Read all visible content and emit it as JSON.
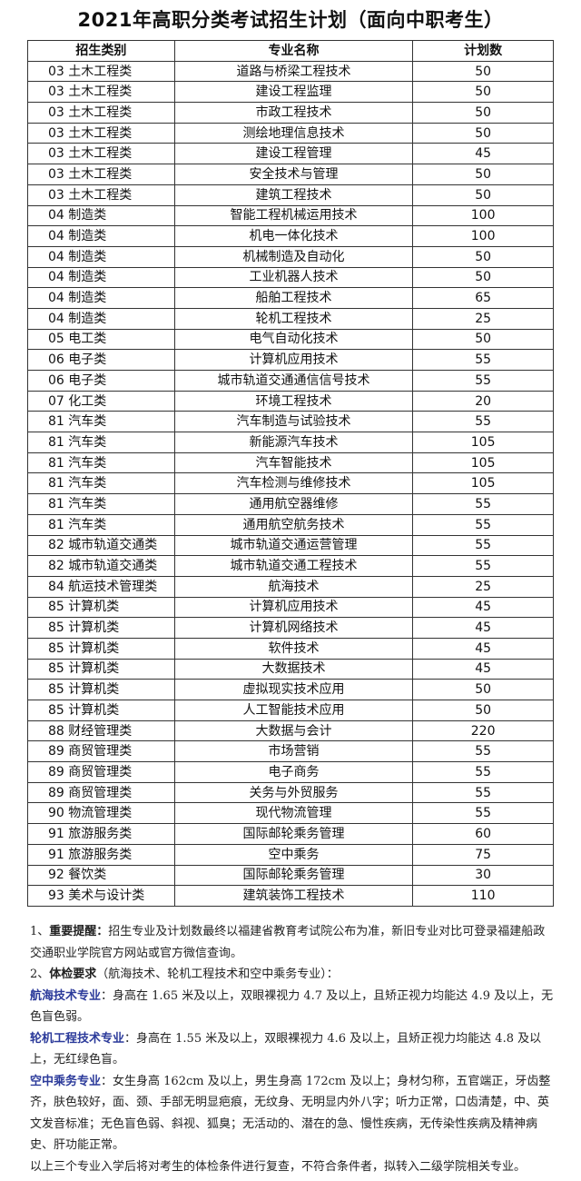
{
  "title": "2021年高职分类考试招生计划（面向中职考生）",
  "table": {
    "headers": [
      "招生类别",
      "专业名称",
      "计划数"
    ],
    "rows": [
      [
        "03 土木工程类",
        "道路与桥梁工程技术",
        "50"
      ],
      [
        "03 土木工程类",
        "建设工程监理",
        "50"
      ],
      [
        "03 土木工程类",
        "市政工程技术",
        "50"
      ],
      [
        "03 土木工程类",
        "测绘地理信息技术",
        "50"
      ],
      [
        "03 土木工程类",
        "建设工程管理",
        "45"
      ],
      [
        "03 土木工程类",
        "安全技术与管理",
        "50"
      ],
      [
        "03 土木工程类",
        "建筑工程技术",
        "50"
      ],
      [
        "04 制造类",
        "智能工程机械运用技术",
        "100"
      ],
      [
        "04 制造类",
        "机电一体化技术",
        "100"
      ],
      [
        "04 制造类",
        "机械制造及自动化",
        "50"
      ],
      [
        "04 制造类",
        "工业机器人技术",
        "50"
      ],
      [
        "04 制造类",
        "船舶工程技术",
        "65"
      ],
      [
        "04 制造类",
        "轮机工程技术",
        "25"
      ],
      [
        "05 电工类",
        "电气自动化技术",
        "50"
      ],
      [
        "06 电子类",
        "计算机应用技术",
        "55"
      ],
      [
        "06 电子类",
        "城市轨道交通通信信号技术",
        "55"
      ],
      [
        "07 化工类",
        "环境工程技术",
        "20"
      ],
      [
        "81 汽车类",
        "汽车制造与试验技术",
        "55"
      ],
      [
        "81 汽车类",
        "新能源汽车技术",
        "105"
      ],
      [
        "81 汽车类",
        "汽车智能技术",
        "105"
      ],
      [
        "81 汽车类",
        "汽车检测与维修技术",
        "105"
      ],
      [
        "81 汽车类",
        "通用航空器维修",
        "55"
      ],
      [
        "81 汽车类",
        "通用航空航务技术",
        "55"
      ],
      [
        "82 城市轨道交通类",
        "城市轨道交通运营管理",
        "55"
      ],
      [
        "82 城市轨道交通类",
        "城市轨道交通工程技术",
        "55"
      ],
      [
        "84 航运技术管理类",
        "航海技术",
        "25"
      ],
      [
        "85 计算机类",
        "计算机应用技术",
        "45"
      ],
      [
        "85 计算机类",
        "计算机网络技术",
        "45"
      ],
      [
        "85 计算机类",
        "软件技术",
        "45"
      ],
      [
        "85 计算机类",
        "大数据技术",
        "45"
      ],
      [
        "85 计算机类",
        "虚拟现实技术应用",
        "50"
      ],
      [
        "85 计算机类",
        "人工智能技术应用",
        "50"
      ],
      [
        "88 财经管理类",
        "大数据与会计",
        "220"
      ],
      [
        "89 商贸管理类",
        "市场营销",
        "55"
      ],
      [
        "89 商贸管理类",
        "电子商务",
        "55"
      ],
      [
        "89 商贸管理类",
        "关务与外贸服务",
        "55"
      ],
      [
        "90 物流管理类",
        "现代物流管理",
        "55"
      ],
      [
        "91 旅游服务类",
        "国际邮轮乘务管理",
        "60"
      ],
      [
        "91 旅游服务类",
        "空中乘务",
        "75"
      ],
      [
        "92 餐饮类",
        "国际邮轮乘务管理",
        "30"
      ],
      [
        "93 美术与设计类",
        "建筑装饰工程技术",
        "110"
      ]
    ]
  },
  "notes": {
    "n1_prefix": "1、",
    "n1_label": "重要提醒：",
    "n1_text": "招生专业及计划数最终以福建省教育考试院公布为准，新旧专业对比可登录福建船政交通职业学院官方网站或官方微信查询。",
    "n2_prefix": "2、",
    "n2_label": "体检要求",
    "n2_text": "（航海技术、轮机工程技术和空中乘务专业）：",
    "hanghai_label": "航海技术专业",
    "hanghai_text": "：身高在 1.65 米及以上，双眼裸视力 4.7 及以上，且矫正视力均能达 4.9 及以上，无色盲色弱。",
    "lunji_label": "轮机工程技术专业",
    "lunji_text": "：身高在 1.55 米及以上，双眼裸视力 4.6 及以上，且矫正视力均能达 4.8 及以上，无红绿色盲。",
    "kongcheng_label": "空中乘务专业",
    "kongcheng_text": "：女生身高 162cm 及以上，男生身高 172cm 及以上；身材匀称，五官端正，牙齿整齐，肤色较好，面、颈、手部无明显疤痕，无纹身、无明显内外八字；听力正常，口齿清楚，中、英文发音标准；无色盲色弱、斜视、狐臭；无活动的、潜在的急、慢性疾病，无传染性疾病及精神病史、肝功能正常。",
    "final": "以上三个专业入学后将对考生的体检条件进行复查，不符合条件者，拟转入二级学院相关专业。"
  }
}
